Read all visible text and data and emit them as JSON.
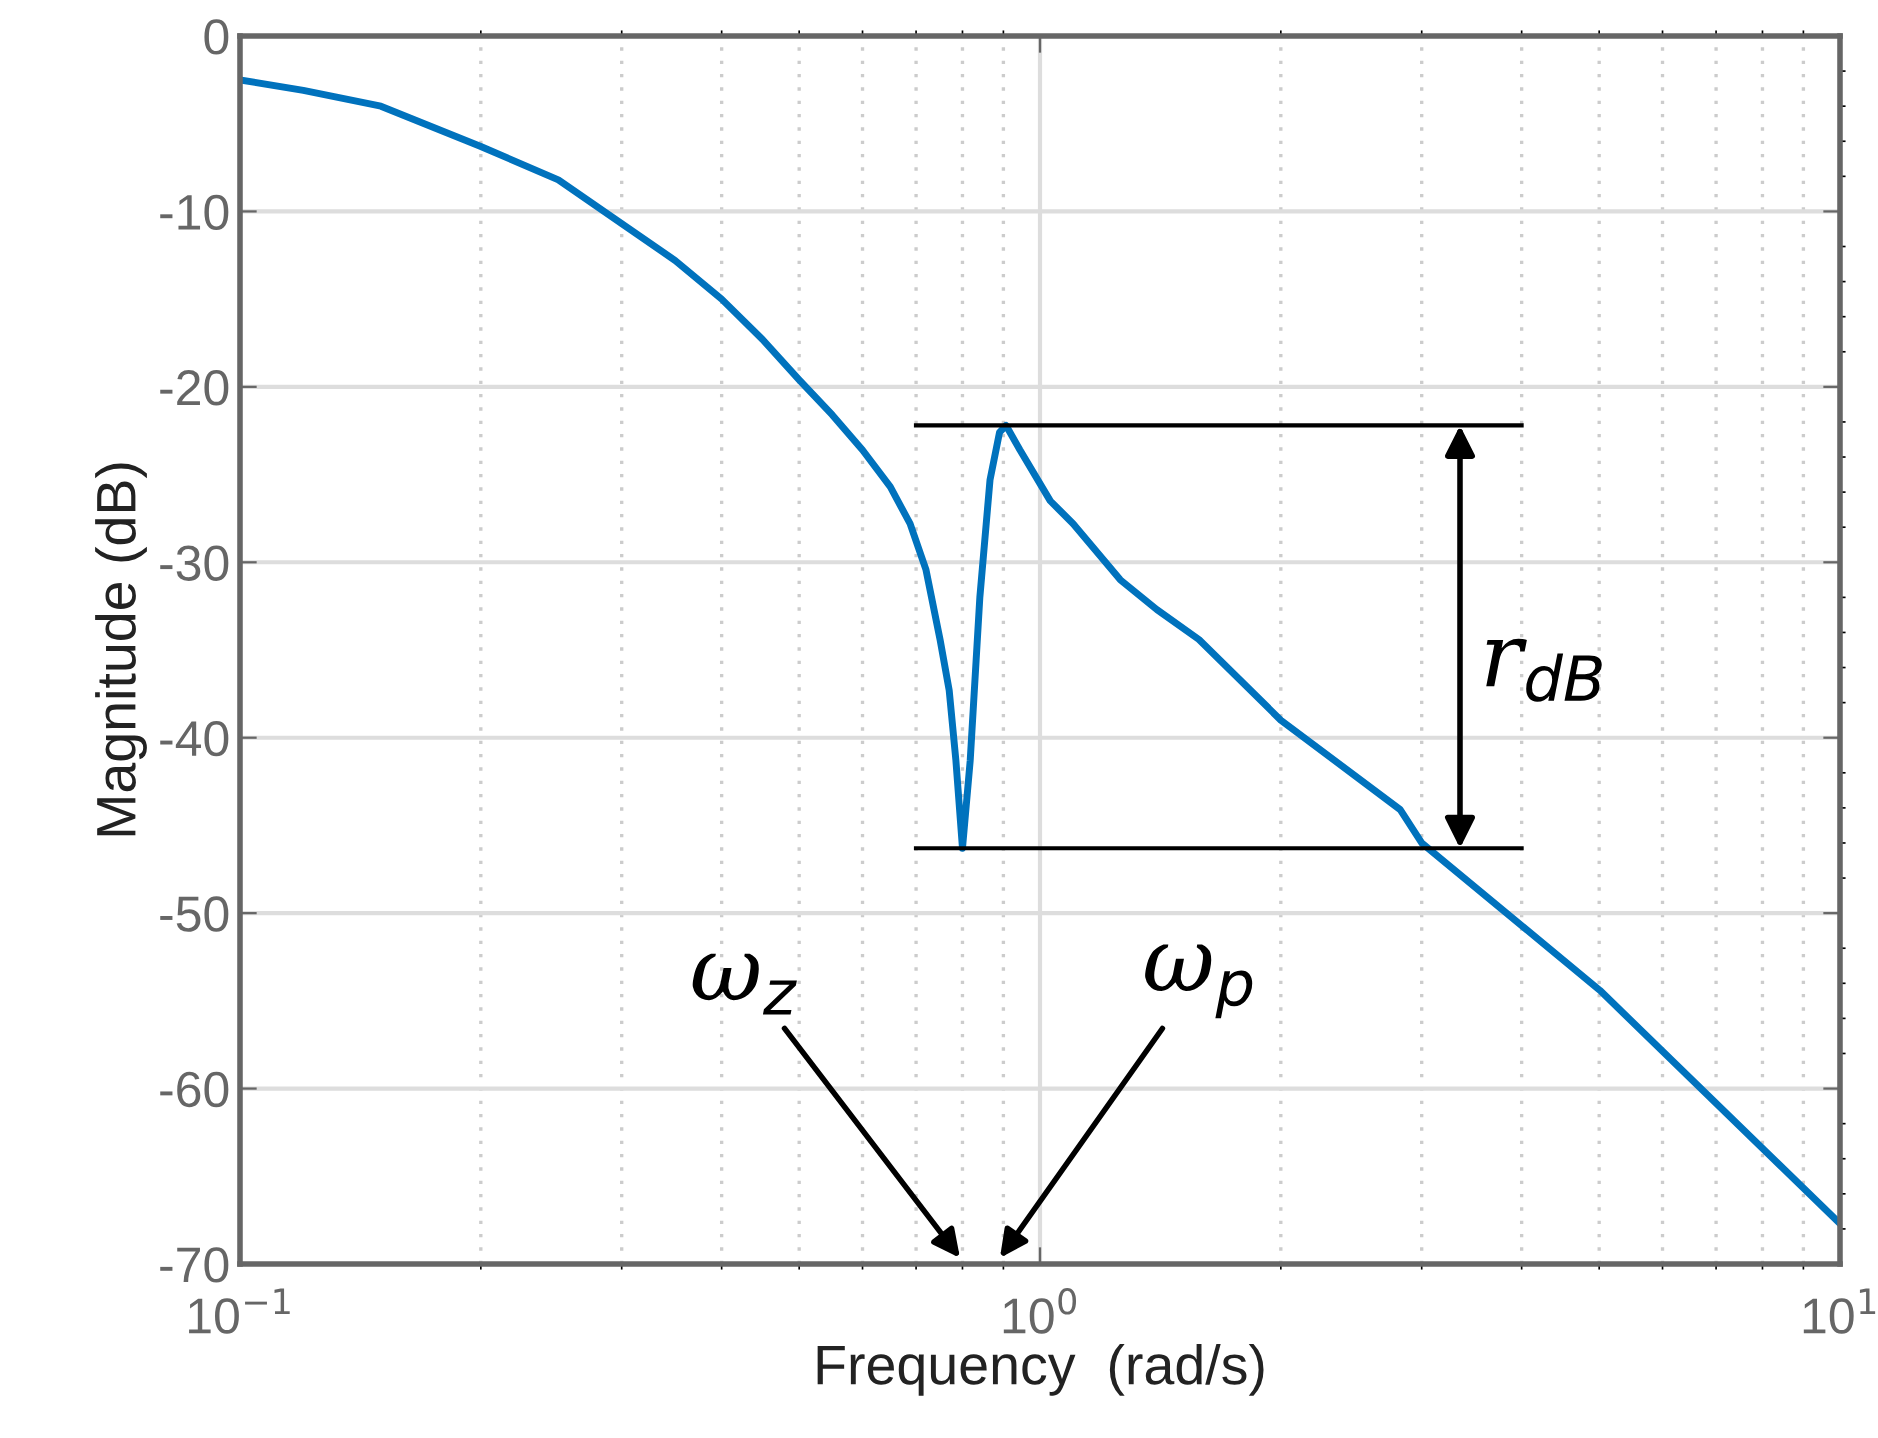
{
  "chart_data": {
    "type": "line",
    "xlabel": "Frequency  (rad/s)",
    "ylabel": "Magnitude (dB)",
    "log": "x",
    "grid": true,
    "xlim": [
      0.1,
      10
    ],
    "ylim": [
      -70,
      0
    ],
    "xticks": [
      {
        "value": 0.1,
        "label": "10$^{−1}$"
      },
      {
        "value": 1,
        "label": "10$^{0}$"
      },
      {
        "value": 10,
        "label": "10$^{1}$"
      }
    ],
    "yticks": [
      -70,
      -60,
      -50,
      -40,
      -30,
      -20,
      -10,
      0
    ],
    "series": [
      {
        "color": "#0072bd",
        "x": [
          0.1,
          0.12,
          0.15,
          0.2,
          0.25,
          0.3,
          0.35,
          0.4,
          0.45,
          0.5,
          0.55,
          0.6,
          0.65,
          0.688,
          0.72,
          0.75,
          0.77,
          0.785,
          0.8,
          0.818,
          0.841,
          0.866,
          0.89,
          0.907,
          0.944,
          1.03,
          1.1,
          1.26,
          1.4,
          1.58,
          2,
          2.82,
          3,
          5.01,
          10
        ],
        "values": [
          -2.5,
          -3.1,
          -4.0,
          -6.3,
          -8.2,
          -10.7,
          -12.8,
          -15,
          -17.3,
          -19.6,
          -21.6,
          -23.6,
          -25.7,
          -27.8,
          -30.4,
          -34.4,
          -37.3,
          -41.3,
          -46.3,
          -41.3,
          -32,
          -25.3,
          -22.6,
          -22.2,
          -23.6,
          -26.5,
          -27.8,
          -31,
          -32.7,
          -34.4,
          -39,
          -44.1,
          -46,
          -54.4,
          -67.7
        ]
      }
    ],
    "ref_lines": [
      {
        "axis": "y",
        "value": -22.2,
        "color": "#000000"
      },
      {
        "axis": "y",
        "value": -46.3,
        "color": "#000000"
      }
    ],
    "annotations": [
      "ω$_{z}$",
      "ω$_{p}$",
      "r$_{dB}$"
    ]
  }
}
